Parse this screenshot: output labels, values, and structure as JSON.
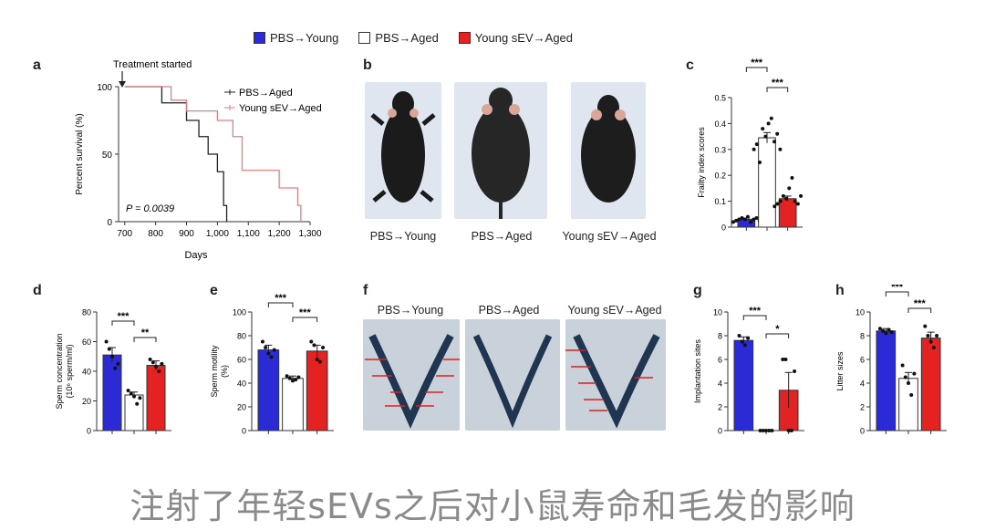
{
  "legend": [
    {
      "label": "PBS→Young",
      "color": "#2b2bd6"
    },
    {
      "label": "PBS→Aged",
      "color": "#ffffff"
    },
    {
      "label": "Young sEV→Aged",
      "color": "#e52222"
    }
  ],
  "panels": {
    "a": {
      "label": "a",
      "annotation": "Treatment started",
      "pvalue": "P = 0.0039",
      "legend": [
        "PBS→Aged",
        "Young sEV→Aged"
      ]
    },
    "b": {
      "label": "b",
      "captions": [
        "PBS→Young",
        "PBS→Aged",
        "Young sEV→Aged"
      ]
    },
    "c": {
      "label": "c",
      "sig": [
        "***",
        "***"
      ]
    },
    "d": {
      "label": "d",
      "sig": [
        "***",
        "**"
      ]
    },
    "e": {
      "label": "e",
      "sig": [
        "***",
        "***"
      ]
    },
    "f": {
      "label": "f",
      "captions": [
        "PBS→Young",
        "PBS→Aged",
        "Young sEV→Aged"
      ]
    },
    "g": {
      "label": "g",
      "sig": [
        "***",
        "*"
      ]
    },
    "h": {
      "label": "h",
      "sig": [
        "***",
        "***"
      ]
    }
  },
  "caption": "注射了年轻sEVs之后对小鼠寿命和毛发的影响",
  "chart_data": [
    {
      "panel": "a",
      "type": "line",
      "xlabel": "Days",
      "ylabel": "Percent survival (%)",
      "xlim": [
        680,
        1300
      ],
      "ylim": [
        0,
        100
      ],
      "xticks": [
        700,
        800,
        900,
        "1,000",
        "1,100",
        "1,200",
        "1,300"
      ],
      "yticks": [
        0,
        50,
        100
      ],
      "series": [
        {
          "name": "PBS→Aged",
          "color": "#222222",
          "x": [
            700,
            820,
            820,
            900,
            900,
            940,
            940,
            970,
            970,
            1000,
            1000,
            1020,
            1020,
            1030,
            1030
          ],
          "y": [
            100,
            100,
            88,
            88,
            75,
            75,
            63,
            63,
            50,
            50,
            37,
            37,
            12,
            12,
            0
          ]
        },
        {
          "name": "Young sEV→Aged",
          "color": "#e08080",
          "x": [
            700,
            850,
            850,
            900,
            900,
            1000,
            1000,
            1050,
            1050,
            1080,
            1080,
            1200,
            1200,
            1260,
            1260,
            1270,
            1270
          ],
          "y": [
            100,
            100,
            90,
            90,
            82,
            82,
            75,
            75,
            63,
            63,
            38,
            38,
            25,
            25,
            12,
            12,
            0
          ]
        }
      ]
    },
    {
      "panel": "c",
      "type": "bar",
      "ylabel": "Frailty index scores",
      "ylim": [
        0,
        0.5
      ],
      "yticks": [
        0,
        0.1,
        0.2,
        0.3,
        0.4,
        0.5
      ],
      "categories": [
        "PBS→Young",
        "PBS→Aged",
        "Young sEV→Aged"
      ],
      "values": [
        0.03,
        0.345,
        0.11
      ],
      "errors": [
        0.005,
        0.02,
        0.01
      ],
      "points": [
        [
          0.02,
          0.025,
          0.03,
          0.035,
          0.03,
          0.04,
          0.02,
          0.03,
          0.035,
          0.025
        ],
        [
          0.3,
          0.32,
          0.25,
          0.38,
          0.35,
          0.4,
          0.42,
          0.33,
          0.36,
          0.3
        ],
        [
          0.08,
          0.09,
          0.1,
          0.12,
          0.11,
          0.15,
          0.19,
          0.1,
          0.09,
          0.12
        ]
      ]
    },
    {
      "panel": "d",
      "type": "bar",
      "ylabel": "Sperm concentration (10⁶ sperm/ml)",
      "ylim": [
        0,
        80
      ],
      "yticks": [
        0,
        20,
        40,
        60,
        80
      ],
      "categories": [
        "PBS→Young",
        "PBS→Aged",
        "Young sEV→Aged"
      ],
      "values": [
        51,
        24,
        44
      ],
      "errors": [
        5,
        2,
        3
      ],
      "points": [
        [
          60,
          55,
          50,
          42,
          45
        ],
        [
          27,
          25,
          23,
          18,
          22
        ],
        [
          48,
          46,
          43,
          40,
          45
        ]
      ]
    },
    {
      "panel": "e",
      "type": "bar",
      "ylabel": "Sperm motility (%)",
      "ylim": [
        0,
        100
      ],
      "yticks": [
        0,
        20,
        40,
        60,
        80,
        100
      ],
      "categories": [
        "PBS→Young",
        "PBS→Aged",
        "Young sEV→Aged"
      ],
      "values": [
        68,
        44,
        67
      ],
      "errors": [
        4,
        2,
        5
      ],
      "points": [
        [
          75,
          70,
          65,
          62,
          68
        ],
        [
          46,
          44,
          42,
          43,
          45
        ],
        [
          75,
          72,
          60,
          58,
          70
        ]
      ]
    },
    {
      "panel": "g",
      "type": "bar",
      "ylabel": "Implantation sites",
      "ylim": [
        0,
        10
      ],
      "yticks": [
        0,
        2,
        4,
        6,
        8,
        10
      ],
      "categories": [
        "PBS→Young",
        "PBS→Aged",
        "Young sEV→Aged"
      ],
      "values": [
        7.6,
        0,
        3.4
      ],
      "errors": [
        0.3,
        0,
        1.5
      ],
      "points": [
        [
          8,
          7.5,
          7.2,
          7.8
        ],
        [
          0,
          0,
          0,
          0,
          0
        ],
        [
          6,
          6,
          0,
          0,
          5
        ]
      ]
    },
    {
      "panel": "h",
      "type": "bar",
      "ylabel": "Litter sizes",
      "ylim": [
        0,
        10
      ],
      "yticks": [
        0,
        2,
        4,
        6,
        8,
        10
      ],
      "categories": [
        "PBS→Young",
        "PBS→Aged",
        "Young sEV→Aged"
      ],
      "values": [
        8.4,
        4.4,
        7.8
      ],
      "errors": [
        0.2,
        0.5,
        0.5
      ],
      "points": [
        [
          8.6,
          8.4,
          8.2,
          8.5,
          8.3
        ],
        [
          5.5,
          4.5,
          4,
          3,
          4.8
        ],
        [
          8.8,
          8,
          7.5,
          7,
          8
        ]
      ]
    }
  ]
}
